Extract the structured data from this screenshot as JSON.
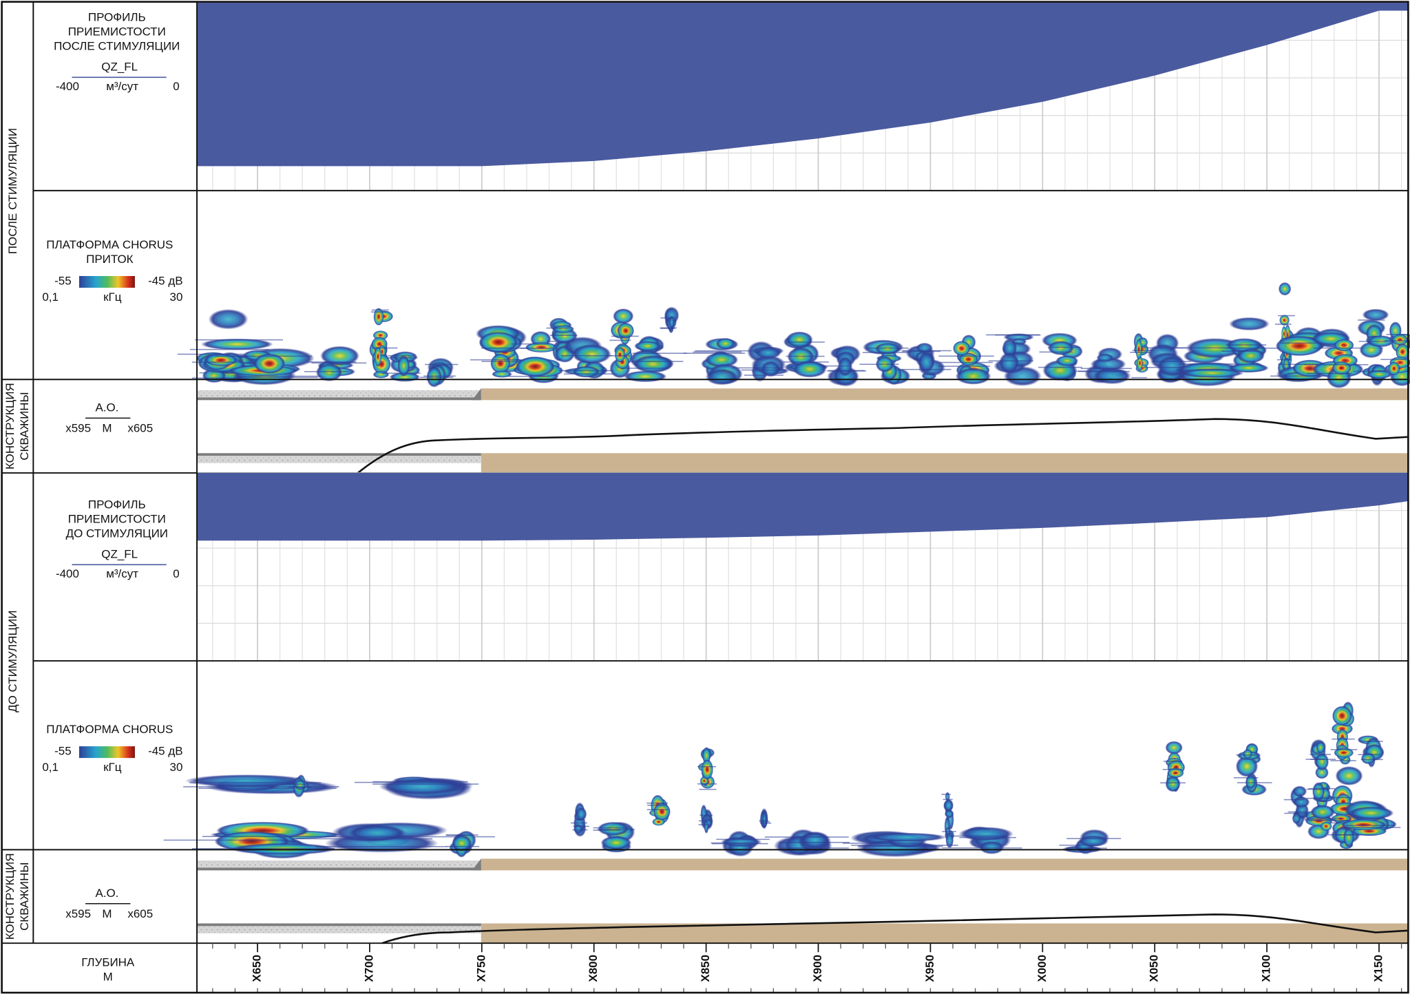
{
  "panels": [
    {
      "side_label": "ПОСЛЕ СТИМУЛЯЦИИ",
      "profile": {
        "type": "area",
        "title": [
          "ПРОФИЛЬ",
          "ПРИЕМИСТОСТИ",
          "ПОСЛЕ СТИМУЛЯЦИИ"
        ],
        "curve": "QZ_FL",
        "unit": "м³/сут",
        "color": "#4a5a9f",
        "x": [
          623,
          650,
          700,
          750,
          800,
          850,
          900,
          950,
          1000,
          1050,
          1100,
          1150,
          1163
        ],
        "values": [
          -348,
          -348,
          -348,
          -348,
          -337,
          -316,
          -289,
          -255,
          -211,
          -155,
          -90,
          -17,
          -17
        ],
        "ylim": [
          -400,
          0
        ],
        "yticks": [
          -400,
          -320,
          -240,
          -160,
          -80,
          0
        ],
        "grid": true
      },
      "chorus": {
        "title": [
          "ПЛАТФОРМА CHORUS",
          "ПРИТОК"
        ],
        "db_low": "-55",
        "db_high": "-45 дВ",
        "freq_low": "0,1",
        "freq_unit": "кГц",
        "freq_high": "30"
      },
      "construction": {
        "side_label": [
          "КОНСТРУКЦИЯ",
          "СКВАЖИНЫ"
        ],
        "curve": "A.O.",
        "left": "x595",
        "unit": "M",
        "right": "x605"
      }
    },
    {
      "side_label": "ДО СТИМУЛЯЦИИ",
      "profile": {
        "type": "area",
        "title": [
          "ПРОФИЛЬ",
          "ПРИЕМИСТОСТИ",
          "ДО СТИМУЛЯЦИИ"
        ],
        "curve": "QZ_FL",
        "unit": "м³/сут",
        "color": "#4a5a9f",
        "x": [
          623,
          650,
          700,
          750,
          800,
          850,
          900,
          950,
          1000,
          1050,
          1100,
          1150,
          1163
        ],
        "values": [
          -144,
          -144,
          -144,
          -144,
          -142,
          -138,
          -133,
          -125,
          -117,
          -106,
          -94,
          -69,
          -60
        ],
        "ylim": [
          -400,
          0
        ],
        "yticks": [
          -400,
          -320,
          -240,
          -160,
          -80,
          0
        ],
        "grid": true
      },
      "chorus": {
        "title": [
          "ПЛАТФОРМА CHORUS"
        ],
        "db_low": "-55",
        "db_high": "-45 дВ",
        "freq_low": "0,1",
        "freq_unit": "кГц",
        "freq_high": "30"
      },
      "construction": {
        "side_label": [
          "КОНСТРУКЦИЯ",
          "СКВАЖИНЫ"
        ],
        "curve": "A.O.",
        "left": "x595",
        "unit": "M",
        "right": "x605"
      }
    }
  ],
  "depth_axis": {
    "title": [
      "ГЛУБИНА",
      "М"
    ],
    "xlim": [
      623,
      1163
    ],
    "xticks": [
      {
        "value": 650,
        "label": "X650"
      },
      {
        "value": 700,
        "label": "X700"
      },
      {
        "value": 750,
        "label": "X750"
      },
      {
        "value": 800,
        "label": "X800"
      },
      {
        "value": 850,
        "label": "X850"
      },
      {
        "value": 900,
        "label": "X900"
      },
      {
        "value": 950,
        "label": "X950"
      },
      {
        "value": 1000,
        "label": "X000"
      },
      {
        "value": 1050,
        "label": "X050"
      },
      {
        "value": 1100,
        "label": "X100"
      },
      {
        "value": 1150,
        "label": "X150"
      }
    ]
  }
}
